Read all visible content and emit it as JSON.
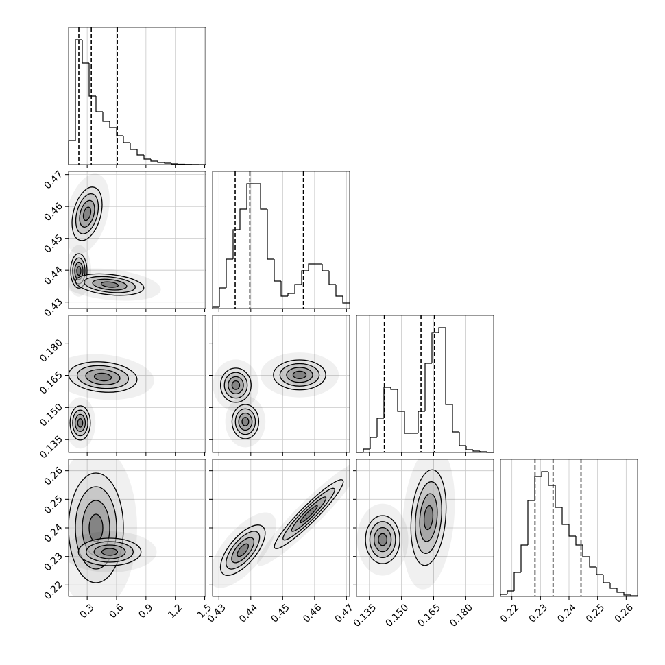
{
  "chart_data": {
    "type": "corner",
    "color": "#000000",
    "levels": [
      0.5,
      1,
      1.5,
      2
    ],
    "params": [
      {
        "xlim": [
          0.11,
          1.51
        ],
        "xticks": [
          0.3,
          0.6,
          0.9,
          1.2,
          1.5
        ],
        "quantiles": [
          0.215,
          0.342,
          0.608
        ],
        "ylim": [
          0,
          200
        ],
        "bins": [
          0.11,
          0.18,
          0.25,
          0.32,
          0.39,
          0.46,
          0.53,
          0.6,
          0.67,
          0.74,
          0.81,
          0.88,
          0.95,
          1.02,
          1.09,
          1.16,
          1.23,
          1.3,
          1.37,
          1.44,
          1.51
        ],
        "counts": [
          35,
          182,
          148,
          100,
          77,
          63,
          54,
          42,
          32,
          22,
          14,
          8,
          5,
          3,
          2,
          1,
          0.5,
          0.3,
          0.1,
          0
        ]
      },
      {
        "xlim": [
          0.428,
          0.471
        ],
        "xticks": [
          0.43,
          0.44,
          0.45,
          0.46,
          0.47
        ],
        "quantiles": [
          0.4351,
          0.4397,
          0.4565
        ],
        "ylim": [
          0,
          200
        ],
        "bins": [
          0.428,
          0.43015,
          0.4323,
          0.43445,
          0.4366,
          0.43875,
          0.4409,
          0.44305,
          0.4452,
          0.44735,
          0.4495,
          0.45165,
          0.4538,
          0.45595,
          0.4581,
          0.46025,
          0.4624,
          0.46455,
          0.4667,
          0.46885,
          0.471
        ],
        "counts": [
          2,
          30,
          72,
          115,
          145,
          182,
          182,
          145,
          72,
          40,
          18,
          22,
          35,
          55,
          65,
          65,
          55,
          35,
          18,
          8
        ]
      },
      {
        "xlim": [
          0.129,
          0.193
        ],
        "xticks": [
          0.135,
          {
            "value": 0.15,
            "label": "0.150"
          },
          0.165,
          {
            "value": 0.18,
            "label": "0.180"
          }
        ],
        "quantiles": [
          0.142,
          0.1591,
          0.1654
        ],
        "ylim": [
          0,
          200
        ],
        "bins": [
          0.129,
          0.1322,
          0.1354,
          0.1386,
          0.1418,
          0.145,
          0.1482,
          0.1514,
          0.1546,
          0.1578,
          0.161,
          0.1642,
          0.1674,
          0.1706,
          0.1738,
          0.177,
          0.1802,
          0.1834,
          0.1866,
          0.1898,
          0.193
        ],
        "counts": [
          0,
          5,
          22,
          50,
          95,
          92,
          60,
          28,
          28,
          60,
          130,
          175,
          182,
          70,
          30,
          10,
          4,
          2,
          1,
          0
        ]
      },
      {
        "xlim": [
          0.216,
          0.264
        ],
        "xticks": [
          0.22,
          0.23,
          0.24,
          0.25,
          0.26
        ],
        "quantiles": [
          0.2281,
          0.2344,
          0.2442
        ],
        "ylim": [
          0,
          200
        ],
        "bins": [
          0.216,
          0.2184,
          0.2208,
          0.2232,
          0.2256,
          0.228,
          0.2304,
          0.2328,
          0.2352,
          0.2376,
          0.24,
          0.2424,
          0.2448,
          0.2472,
          0.2496,
          0.252,
          0.2544,
          0.2568,
          0.2592,
          0.2616,
          0.264
        ],
        "counts": [
          3,
          8,
          35,
          75,
          140,
          175,
          182,
          162,
          130,
          105,
          88,
          75,
          58,
          43,
          32,
          20,
          12,
          6,
          2,
          1
        ]
      }
    ],
    "panels": [
      {
        "x": 0,
        "y": 1,
        "blobs": [
          {
            "cx": 0.299,
            "cy": 0.4577,
            "sx": 0.07,
            "sy": 0.0043,
            "rot": 15
          },
          {
            "cx": 0.215,
            "cy": 0.4398,
            "sx": 0.042,
            "sy": 0.0027,
            "rot": 0
          },
          {
            "cx": 0.53,
            "cy": 0.4355,
            "sx": 0.175,
            "sy": 0.0016,
            "rot": 6
          }
        ]
      },
      {
        "x": 0,
        "y": 2,
        "blobs": [
          {
            "cx": 0.46,
            "cy": 0.1642,
            "sx": 0.175,
            "sy": 0.0035,
            "rot": 5
          },
          {
            "cx": 0.229,
            "cy": 0.1428,
            "sx": 0.052,
            "sy": 0.004,
            "rot": 0
          }
        ]
      },
      {
        "x": 1,
        "y": 2,
        "blobs": [
          {
            "cx": 0.4353,
            "cy": 0.1604,
            "sx": 0.0024,
            "sy": 0.004,
            "rot": 0
          },
          {
            "cx": 0.4383,
            "cy": 0.1434,
            "sx": 0.0021,
            "sy": 0.004,
            "rot": 0
          },
          {
            "cx": 0.4553,
            "cy": 0.1652,
            "sx": 0.0041,
            "sy": 0.0035,
            "rot": 0
          }
        ]
      },
      {
        "x": 0,
        "y": 3,
        "blobs": [
          {
            "cx": 0.39,
            "cy": 0.24,
            "sx": 0.14,
            "sy": 0.0096,
            "rot": 0
          },
          {
            "cx": 0.53,
            "cy": 0.2316,
            "sx": 0.16,
            "sy": 0.0024,
            "rot": 0
          }
        ]
      },
      {
        "x": 1,
        "y": 3,
        "blobs": [
          {
            "cx": 0.4375,
            "cy": 0.2322,
            "sx": 0.0021,
            "sy": 0.0054,
            "rot": 40
          },
          {
            "cx": 0.4582,
            "cy": 0.2448,
            "sx": 0.0013,
            "sy": 0.0084,
            "rot": 45
          }
        ]
      },
      {
        "x": 2,
        "y": 3,
        "blobs": [
          {
            "cx": 0.1412,
            "cy": 0.2359,
            "sx": 0.004,
            "sy": 0.0042,
            "rot": 0
          },
          {
            "cx": 0.1626,
            "cy": 0.2436,
            "sx": 0.004,
            "sy": 0.0084,
            "rot": 5
          }
        ]
      }
    ]
  }
}
